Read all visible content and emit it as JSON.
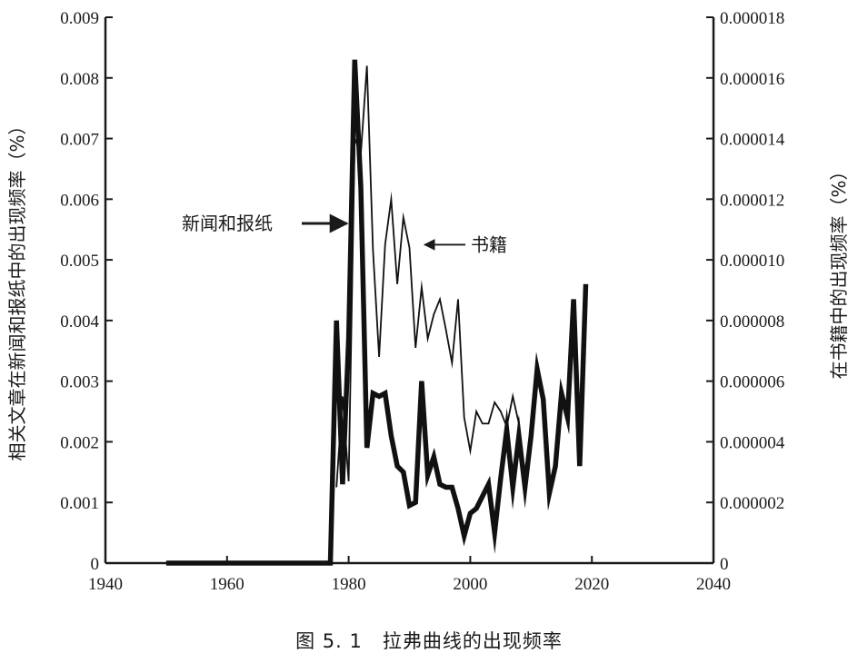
{
  "caption": "图 5. 1　拉弗曲线的出现频率",
  "chart_data": {
    "type": "line",
    "xlabel": "",
    "ylabel": "相关文章在新闻和报纸中的出现频率（%）",
    "y2label": "在书籍中的出现频率（%）",
    "xlim": [
      1940,
      2040
    ],
    "ylim": [
      0,
      0.009
    ],
    "y2lim": [
      0,
      1.8e-05
    ],
    "x_ticks": [
      1940,
      1960,
      1980,
      2000,
      2020,
      2040
    ],
    "y_ticks": [
      "0",
      "0.001",
      "0.002",
      "0.003",
      "0.004",
      "0.005",
      "0.006",
      "0.007",
      "0.008",
      "0.009"
    ],
    "y2_ticks": [
      "0",
      "0.000002",
      "0.000004",
      "0.000006",
      "0.000008",
      "0.000010",
      "0.000012",
      "0.000014",
      "0.000016",
      "0.000018"
    ],
    "grid": false,
    "series": [
      {
        "name": "新闻和报纸",
        "axis": "left",
        "color": "#111111",
        "x": [
          1950,
          1977,
          1978,
          1979,
          1980,
          1981,
          1982,
          1983,
          1984,
          1985,
          1986,
          1987,
          1988,
          1989,
          1990,
          1991,
          1992,
          1993,
          1994,
          1995,
          1996,
          1997,
          1998,
          1999,
          2000,
          2001,
          2002,
          2003,
          2004,
          2005,
          2006,
          2007,
          2008,
          2009,
          2010,
          2011,
          2012,
          2013,
          2014,
          2015,
          2016,
          2017,
          2018,
          2019
        ],
        "y": [
          0,
          0,
          0.004,
          0.0013,
          0.0037,
          0.0083,
          0.0062,
          0.0019,
          0.0028,
          0.00275,
          0.0028,
          0.0021,
          0.0016,
          0.0015,
          0.00095,
          0.001,
          0.003,
          0.00145,
          0.00175,
          0.0013,
          0.00125,
          0.00125,
          0.0009,
          0.00045,
          0.00082,
          0.0009,
          0.0011,
          0.0013,
          0.0005,
          0.0014,
          0.0022,
          0.00125,
          0.0021,
          0.00125,
          0.0021,
          0.0032,
          0.0027,
          0.00115,
          0.0016,
          0.0028,
          0.0024,
          0.00435,
          0.0016,
          0.0046
        ]
      },
      {
        "name": "书籍",
        "axis": "right",
        "color": "#111111",
        "x": [
          1978,
          1979,
          1980,
          1981,
          1982,
          1983,
          1984,
          1985,
          1986,
          1987,
          1988,
          1989,
          1990,
          1991,
          1992,
          1993,
          1994,
          1995,
          1996,
          1997,
          1998,
          1999,
          2000,
          2001,
          2002,
          2003,
          2004,
          2005,
          2006,
          2007,
          2008
        ],
        "y": [
          2.5e-06,
          5.5e-06,
          2.7e-06,
          1.4e-05,
          1.35e-05,
          1.64e-05,
          1.03e-05,
          6.8e-06,
          1.05e-05,
          1.2e-05,
          9.2e-06,
          1.14e-05,
          1.04e-05,
          7.1e-06,
          9.1e-06,
          7.4e-06,
          8.2e-06,
          8.7e-06,
          7.7e-06,
          6.6e-06,
          8.7e-06,
          4.8e-06,
          3.7e-06,
          5e-06,
          4.6e-06,
          4.6e-06,
          5.3e-06,
          5e-06,
          4.5e-06,
          5.5e-06,
          4.6e-06
        ]
      }
    ],
    "annotations": [
      {
        "text": "新闻和报纸",
        "target_x": 1980,
        "target_y": 0.0056,
        "axis": "left"
      },
      {
        "text": "书籍",
        "target_x": 1992.2,
        "target_y": 1.05e-05,
        "axis": "right"
      }
    ]
  }
}
